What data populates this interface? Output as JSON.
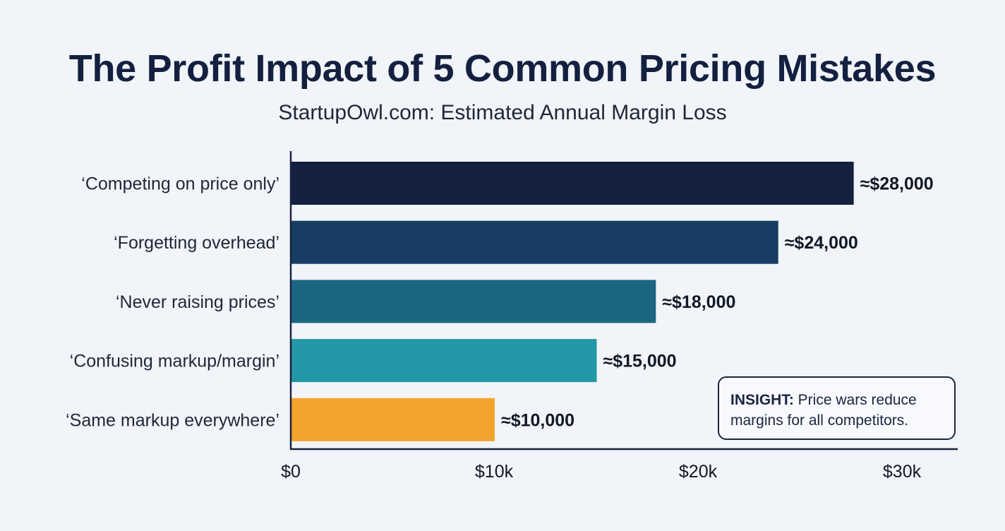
{
  "header": {
    "title": "The Profit Impact of 5 Common Pricing Mistakes",
    "subtitle": "StartupOwl.com: Estimated Annual Margin Loss"
  },
  "insight": {
    "label": "INSIGHT:",
    "text": " Price wars reduce margins for all competitors."
  },
  "chart_data": {
    "type": "bar",
    "orientation": "horizontal",
    "title": "The Profit Impact of 5 Common Pricing Mistakes",
    "subtitle": "StartupOwl.com: Estimated Annual Margin Loss",
    "categories": [
      "‘Competing on price only’",
      "‘Forgetting overhead’",
      "‘Never raising prices’",
      "‘Confusing markup/margin’",
      "‘Same markup everywhere’"
    ],
    "values": [
      27600,
      23900,
      17900,
      15000,
      10000
    ],
    "data_labels": [
      "≈$28,000",
      "≈$24,000",
      "≈$18,000",
      "≈$15,000",
      "≈$10,000"
    ],
    "colors": [
      "#13203f",
      "#173d62",
      "#1b6681",
      "#2297a5",
      "#f2a42d"
    ],
    "xlim": [
      0,
      30000
    ],
    "xticks": [
      0,
      10000,
      20000,
      30000
    ],
    "xtick_labels": [
      "$0",
      "$10k",
      "$20k",
      "$30k"
    ],
    "xlabel": "",
    "ylabel": "",
    "grid": false,
    "legend": "none"
  }
}
